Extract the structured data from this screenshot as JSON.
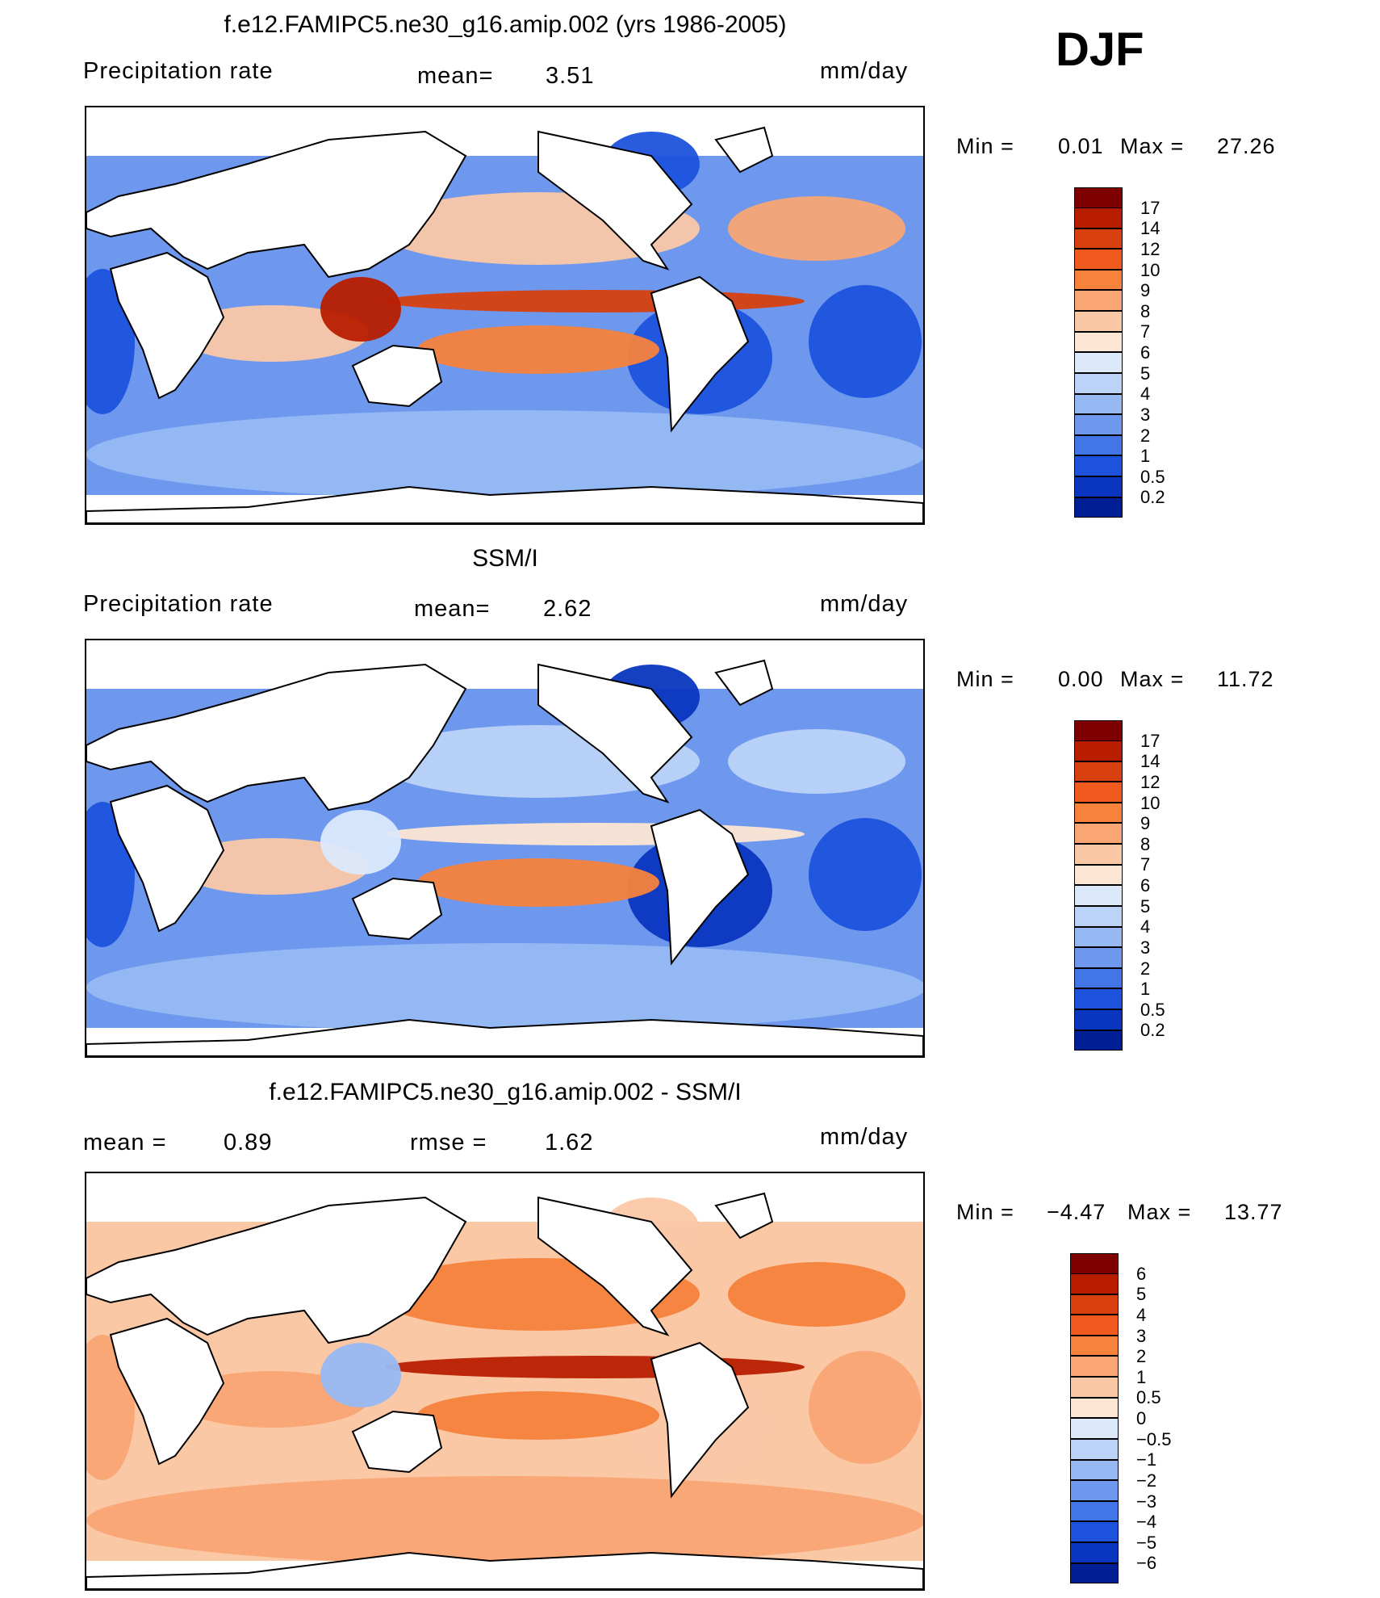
{
  "season": "DJF",
  "chart_data": [
    {
      "type": "heatmap",
      "title": "f.e12.FAMIPC5.ne30_g16.amip.002 (yrs 1986-2005)",
      "variable": "Precipitation rate",
      "mean_label": "mean=",
      "mean_value": "3.51",
      "units": "mm/day",
      "min_label": "Min =",
      "min_value": "0.01",
      "max_label": "Max =",
      "max_value": "27.26",
      "colorbar": {
        "levels": [
          "17",
          "14",
          "12",
          "10",
          "9",
          "8",
          "7",
          "6",
          "5",
          "4",
          "3",
          "2",
          "1",
          "0.5",
          "0.2"
        ],
        "colors": [
          "#7f0000",
          "#b81d00",
          "#d8400f",
          "#f05a1e",
          "#f7823c",
          "#f9a574",
          "#fbc8a6",
          "#fde6d3",
          "#dbe9fb",
          "#bcd3f8",
          "#97b9f3",
          "#6d98ee",
          "#4276e6",
          "#1d52dd",
          "#0a36bf",
          "#001f95"
        ]
      },
      "regions": {
        "itcz_pacific": 12,
        "south_pacific_convergence": 9,
        "maritime_continent": 14,
        "indian_ocean": 7,
        "north_pacific_storm_track": 7,
        "north_atlantic": 8,
        "southern_ocean": 3,
        "subtropical_east_pacific": 0.5,
        "subtropical_south_atlantic": 0.5
      }
    },
    {
      "type": "heatmap",
      "title": "SSM/I",
      "variable": "Precipitation rate",
      "mean_label": "mean=",
      "mean_value": "2.62",
      "units": "mm/day",
      "min_label": "Min =",
      "min_value": "0.00",
      "max_label": "Max =",
      "max_value": "11.72",
      "colorbar": {
        "levels": [
          "17",
          "14",
          "12",
          "10",
          "9",
          "8",
          "7",
          "6",
          "5",
          "4",
          "3",
          "2",
          "1",
          "0.5",
          "0.2"
        ],
        "colors": [
          "#7f0000",
          "#b81d00",
          "#d8400f",
          "#f05a1e",
          "#f7823c",
          "#f9a574",
          "#fbc8a6",
          "#fde6d3",
          "#dbe9fb",
          "#bcd3f8",
          "#97b9f3",
          "#6d98ee",
          "#4276e6",
          "#1d52dd",
          "#0a36bf",
          "#001f95"
        ]
      },
      "regions": {
        "itcz_pacific": 6,
        "south_pacific_convergence": 9,
        "maritime_continent": 5,
        "indian_ocean": 7,
        "north_pacific_storm_track": 4,
        "north_atlantic": 4,
        "southern_ocean": 3,
        "subtropical_east_pacific": 0.2,
        "subtropical_south_atlantic": 0.5
      }
    },
    {
      "type": "heatmap",
      "title": "f.e12.FAMIPC5.ne30_g16.amip.002 - SSM/I",
      "mean_label": "mean =",
      "mean_value": "0.89",
      "rmse_label": "rmse =",
      "rmse_value": "1.62",
      "units": "mm/day",
      "min_label": "Min =",
      "min_value": "−4.47",
      "max_label": "Max =",
      "max_value": "13.77",
      "colorbar": {
        "levels": [
          "6",
          "5",
          "4",
          "3",
          "2",
          "1",
          "0.5",
          "0",
          "−0.5",
          "−1",
          "−2",
          "−3",
          "−4",
          "−5",
          "−6"
        ],
        "colors": [
          "#7f0000",
          "#b81d00",
          "#d8400f",
          "#f05a1e",
          "#f7823c",
          "#f9a574",
          "#fbc8a6",
          "#fde6d3",
          "#dbe9fb",
          "#bcd3f8",
          "#97b9f3",
          "#6d98ee",
          "#4276e6",
          "#1d52dd",
          "#0a36bf",
          "#001f95"
        ]
      },
      "regions": {
        "itcz_pacific": 5,
        "south_pacific_convergence": 2,
        "maritime_continent": -2,
        "indian_ocean": 1,
        "north_pacific_storm_track": 2,
        "north_atlantic": 2,
        "southern_ocean": 1,
        "subtropical_east_pacific": 0.5,
        "subtropical_south_atlantic": 1
      }
    }
  ]
}
